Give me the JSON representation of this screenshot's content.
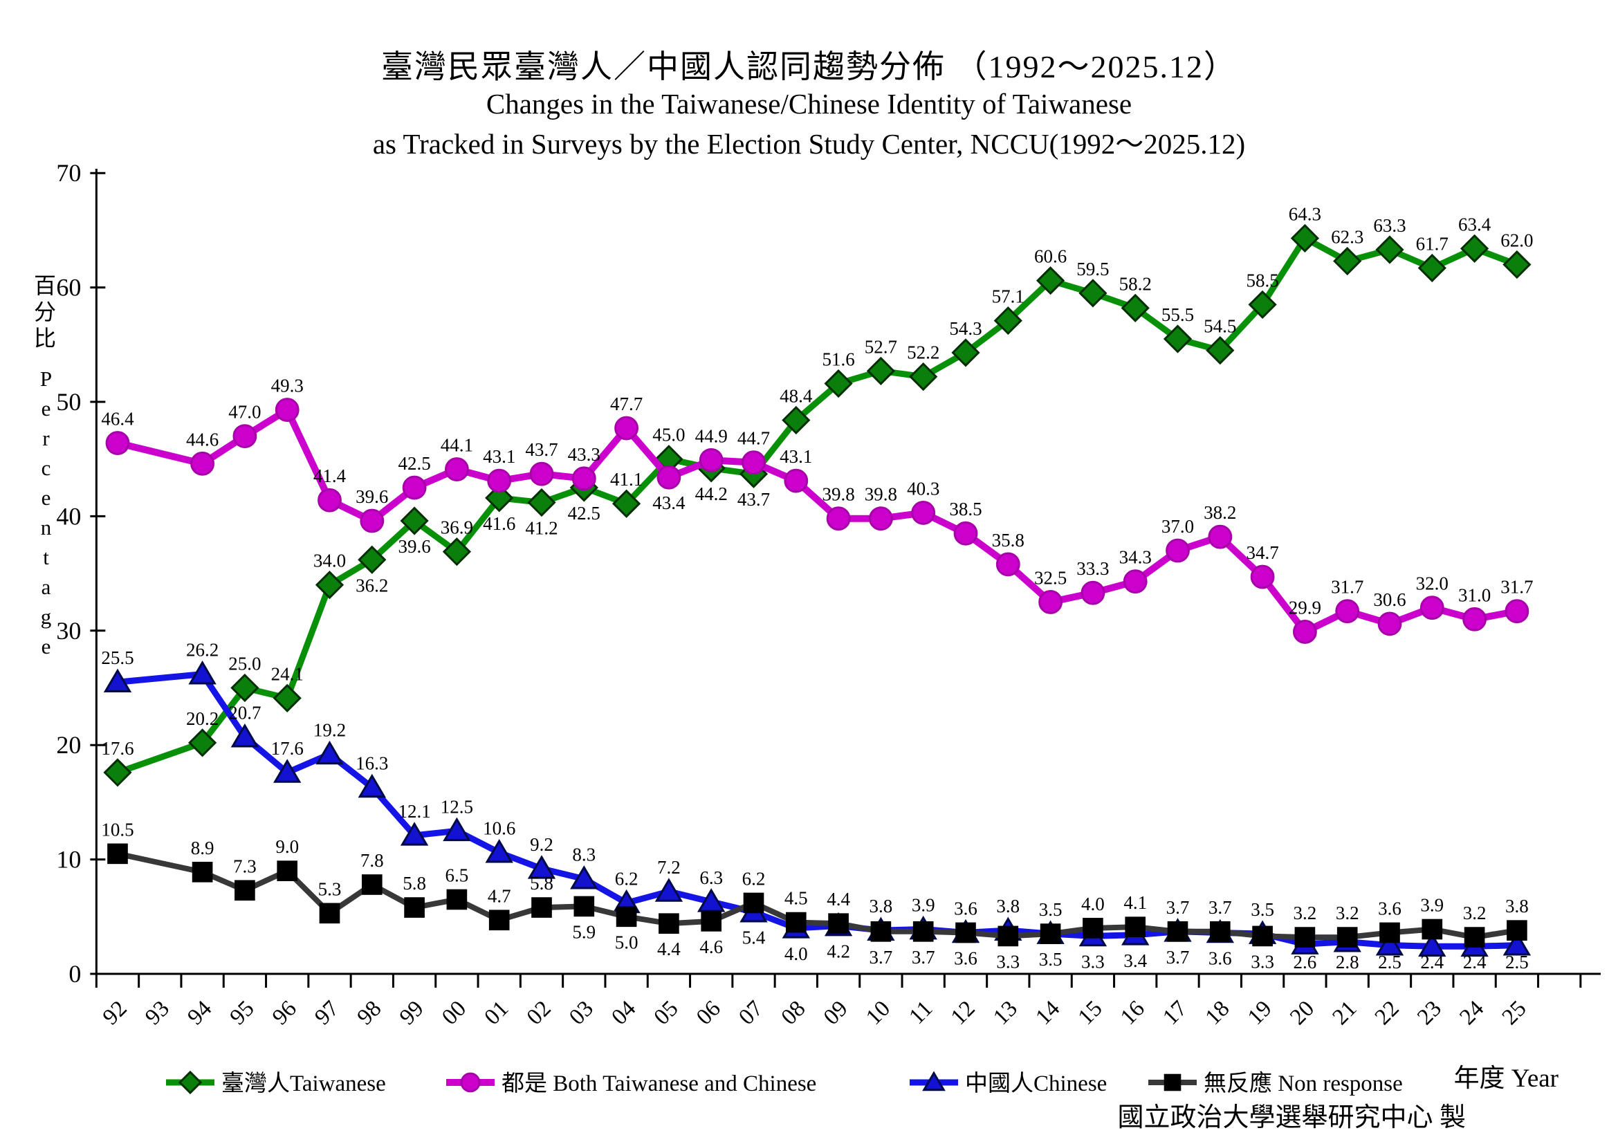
{
  "title": {
    "zh": "臺灣民眾臺灣人／中國人認同趨勢分佈 （1992～2025.12）",
    "en_line1": "Changes in the Taiwanese/Chinese Identity of Taiwanese",
    "en_line2": "as Tracked in Surveys by the Election Study Center, NCCU(1992～2025.12)"
  },
  "y_axis": {
    "label_zh": "百分比",
    "label_en": "Percentage",
    "ticks": [
      0,
      10,
      20,
      30,
      40,
      50,
      60,
      70
    ]
  },
  "x_axis": {
    "label": "年度 Year",
    "tick_labels": [
      "92",
      "93",
      "94",
      "95",
      "96",
      "97",
      "98",
      "99",
      "00",
      "01",
      "02",
      "03",
      "04",
      "05",
      "06",
      "07",
      "08",
      "09",
      "10",
      "11",
      "12",
      "13",
      "14",
      "15",
      "16",
      "17",
      "18",
      "19",
      "20",
      "21",
      "22",
      "23",
      "24",
      "25"
    ]
  },
  "footer": {
    "credit": "國立政治大學選舉研究中心 製"
  },
  "chart_data": {
    "type": "line",
    "title": "臺灣民眾臺灣人／中國人認同趨勢分佈 （1992～2025.12）",
    "xlabel": "年度 Year",
    "ylabel": "百分比 Percentage",
    "ylim": [
      0,
      70
    ],
    "grid": false,
    "legend_position": "bottom",
    "x_axis_categories": [
      "92",
      "93",
      "94",
      "95",
      "96",
      "97",
      "98",
      "99",
      "00",
      "01",
      "02",
      "03",
      "04",
      "05",
      "06",
      "07",
      "08",
      "09",
      "10",
      "11",
      "12",
      "13",
      "14",
      "15",
      "16",
      "17",
      "18",
      "19",
      "20",
      "21",
      "22",
      "23",
      "24",
      "25"
    ],
    "x_data": [
      "92",
      "94",
      "95",
      "96",
      "97",
      "98",
      "99",
      "00",
      "01",
      "02",
      "03",
      "04",
      "05",
      "06",
      "07",
      "08",
      "09",
      "10",
      "11",
      "12",
      "13",
      "14",
      "15",
      "16",
      "17",
      "18",
      "19",
      "20",
      "21",
      "22",
      "23",
      "24",
      "25"
    ],
    "series": [
      {
        "id": "taiwanese",
        "legend_label": "臺灣人Taiwanese",
        "color": "#089008",
        "marker": "diamond",
        "marker_fill": "#0B7F0B",
        "marker_stroke": "#022E02",
        "values": [
          17.6,
          20.2,
          25.0,
          24.1,
          34.0,
          36.2,
          39.6,
          36.9,
          41.6,
          41.2,
          42.5,
          41.1,
          45.0,
          44.2,
          43.7,
          48.4,
          51.6,
          52.7,
          52.2,
          54.3,
          57.1,
          60.6,
          59.5,
          58.2,
          55.5,
          54.5,
          58.5,
          64.3,
          62.3,
          63.3,
          61.7,
          63.4,
          62.0
        ]
      },
      {
        "id": "both",
        "legend_label": "都是 Both Taiwanese and Chinese",
        "color": "#CC00CC",
        "marker": "circle",
        "marker_fill": "#CC00CC",
        "marker_stroke": "#A800A8",
        "values": [
          46.4,
          44.6,
          47.0,
          49.3,
          41.4,
          39.6,
          42.5,
          44.1,
          43.1,
          43.7,
          43.3,
          47.7,
          43.4,
          44.9,
          44.7,
          43.1,
          39.8,
          39.8,
          40.3,
          38.5,
          35.8,
          32.5,
          33.3,
          34.3,
          37.0,
          38.2,
          34.7,
          29.9,
          31.7,
          30.6,
          32.0,
          31.0,
          31.7
        ]
      },
      {
        "id": "chinese",
        "legend_label": "中國人Chinese",
        "color": "#1414E6",
        "marker": "triangle",
        "marker_fill": "#1212D0",
        "marker_stroke": "#000A46",
        "values": [
          25.5,
          26.2,
          20.7,
          17.6,
          19.2,
          16.3,
          12.1,
          12.5,
          10.6,
          9.2,
          8.3,
          6.2,
          7.2,
          6.3,
          5.4,
          4.0,
          4.2,
          3.8,
          3.9,
          3.6,
          3.8,
          3.5,
          3.3,
          3.4,
          3.7,
          3.6,
          3.5,
          2.6,
          2.8,
          2.5,
          2.4,
          2.4,
          2.5
        ]
      },
      {
        "id": "nonresponse",
        "legend_label": "無反應 Non response",
        "color": "#383838",
        "marker": "square",
        "marker_fill": "#000000",
        "marker_stroke": "#000000",
        "values": [
          10.5,
          8.9,
          7.3,
          9.0,
          5.3,
          7.8,
          5.8,
          6.5,
          4.7,
          5.8,
          5.9,
          5.0,
          4.4,
          4.6,
          6.2,
          4.5,
          4.4,
          3.7,
          3.7,
          3.6,
          3.3,
          3.5,
          4.0,
          4.1,
          3.7,
          3.7,
          3.3,
          3.2,
          3.2,
          3.6,
          3.9,
          3.2,
          3.8
        ]
      }
    ]
  }
}
